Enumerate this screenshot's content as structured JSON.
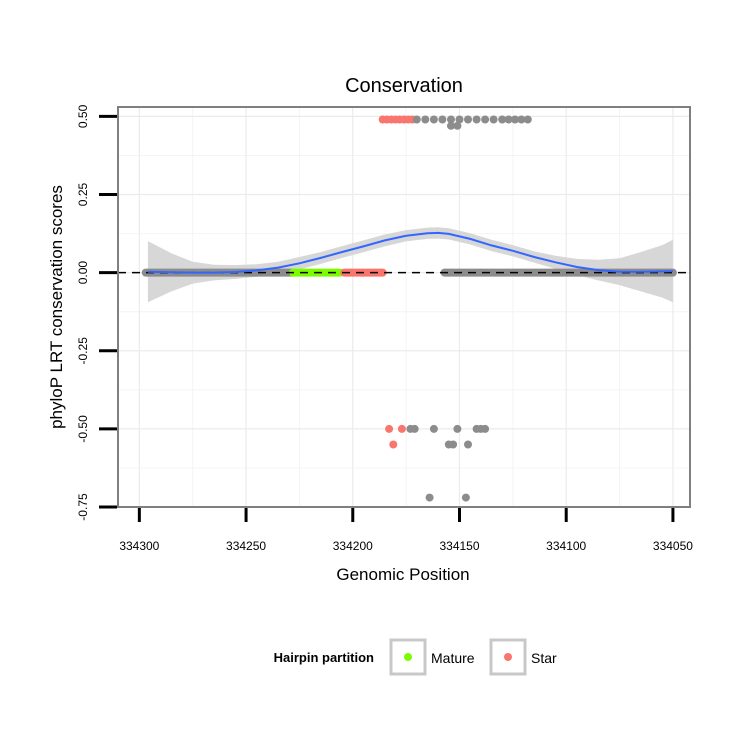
{
  "chart_data": {
    "type": "scatter",
    "title": "Conservation",
    "xlabel": "Genomic Position",
    "ylabel": "phyloP LRT conservation scores",
    "x_reversed": true,
    "xlim": [
      334310,
      334042
    ],
    "ylim": [
      -0.75,
      0.53
    ],
    "x_ticks": [
      334300,
      334250,
      334200,
      334150,
      334100,
      334050
    ],
    "y_ticks": [
      0.5,
      0.25,
      0.0,
      -0.25,
      -0.5,
      -0.75
    ],
    "y_tick_labels": [
      "0.50",
      "0.25",
      "0.00",
      "-0.25",
      "-0.50",
      "-0.75"
    ],
    "x_tick_labels": [
      "334300",
      "334250",
      "334200",
      "334150",
      "334100",
      "334050"
    ],
    "hline_y": 0,
    "legend": {
      "title": "Hairpin partition",
      "entries": [
        {
          "label": "Mature",
          "color": "#7cfc00"
        },
        {
          "label": "Star",
          "color": "#f8766d"
        }
      ],
      "position": "bottom"
    },
    "colors": {
      "none": "#8c8c8c",
      "mature": "#7cfc00",
      "star": "#f8766d",
      "smooth_line": "#3366ff",
      "ribbon": "#d3d3d3",
      "grid": "#ebebeb"
    },
    "series": [
      {
        "name": "none-left",
        "group": "none",
        "line_segment": {
          "x_from": 334297,
          "x_to": 334228,
          "y": 0
        }
      },
      {
        "name": "Mature",
        "group": "mature",
        "line_segment": {
          "x_from": 334228,
          "x_to": 334206,
          "y": 0
        }
      },
      {
        "name": "Star",
        "group": "star",
        "line_segment": {
          "x_from": 334204,
          "x_to": 334186,
          "y": 0
        },
        "points": [
          {
            "x": 334186,
            "y": 0.49
          },
          {
            "x": 334184,
            "y": 0.49
          },
          {
            "x": 334182,
            "y": 0.49
          },
          {
            "x": 334180,
            "y": 0.49
          },
          {
            "x": 334178,
            "y": 0.49
          },
          {
            "x": 334176,
            "y": 0.49
          },
          {
            "x": 334174,
            "y": 0.49
          },
          {
            "x": 334172,
            "y": 0.49
          },
          {
            "x": 334183,
            "y": -0.5
          },
          {
            "x": 334177,
            "y": -0.5
          },
          {
            "x": 334181,
            "y": -0.55
          }
        ]
      },
      {
        "name": "none-right",
        "group": "none",
        "line_segment": {
          "x_from": 334157,
          "x_to": 334050,
          "y": 0
        }
      },
      {
        "name": "none-points",
        "group": "none",
        "points": [
          {
            "x": 334170,
            "y": 0.49
          },
          {
            "x": 334166,
            "y": 0.49
          },
          {
            "x": 334162,
            "y": 0.49
          },
          {
            "x": 334158,
            "y": 0.49
          },
          {
            "x": 334154,
            "y": 0.49
          },
          {
            "x": 334150,
            "y": 0.49
          },
          {
            "x": 334146,
            "y": 0.49
          },
          {
            "x": 334142,
            "y": 0.49
          },
          {
            "x": 334138,
            "y": 0.49
          },
          {
            "x": 334134,
            "y": 0.49
          },
          {
            "x": 334130,
            "y": 0.49
          },
          {
            "x": 334127,
            "y": 0.49
          },
          {
            "x": 334124,
            "y": 0.49
          },
          {
            "x": 334121,
            "y": 0.49
          },
          {
            "x": 334118,
            "y": 0.49
          },
          {
            "x": 334154,
            "y": 0.47
          },
          {
            "x": 334151,
            "y": 0.47
          },
          {
            "x": 334173,
            "y": -0.5
          },
          {
            "x": 334171,
            "y": -0.5
          },
          {
            "x": 334162,
            "y": -0.5
          },
          {
            "x": 334151,
            "y": -0.5
          },
          {
            "x": 334142,
            "y": -0.5
          },
          {
            "x": 334140,
            "y": -0.5
          },
          {
            "x": 334138,
            "y": -0.5
          },
          {
            "x": 334155,
            "y": -0.55
          },
          {
            "x": 334153,
            "y": -0.55
          },
          {
            "x": 334146,
            "y": -0.55
          },
          {
            "x": 334164,
            "y": -0.72
          },
          {
            "x": 334147,
            "y": -0.72
          }
        ]
      }
    ],
    "smooth_curve": {
      "x": [
        334296,
        334285,
        334275,
        334265,
        334255,
        334245,
        334235,
        334225,
        334215,
        334205,
        334195,
        334185,
        334175,
        334165,
        334160,
        334155,
        334145,
        334135,
        334125,
        334115,
        334105,
        334095,
        334085,
        334075,
        334065,
        334055,
        334050
      ],
      "y": [
        0.003,
        0.001,
        0.0,
        0.0,
        0.002,
        0.007,
        0.016,
        0.03,
        0.047,
        0.066,
        0.084,
        0.103,
        0.118,
        0.126,
        0.127,
        0.124,
        0.108,
        0.087,
        0.07,
        0.05,
        0.033,
        0.018,
        0.008,
        0.003,
        0.003,
        0.004,
        0.005
      ],
      "lower": [
        -0.095,
        -0.06,
        -0.035,
        -0.025,
        -0.02,
        -0.013,
        -0.003,
        0.01,
        0.028,
        0.047,
        0.065,
        0.084,
        0.1,
        0.108,
        0.109,
        0.106,
        0.09,
        0.069,
        0.052,
        0.032,
        0.012,
        -0.008,
        -0.025,
        -0.04,
        -0.06,
        -0.08,
        -0.095
      ],
      "upper": [
        0.101,
        0.062,
        0.035,
        0.025,
        0.024,
        0.027,
        0.035,
        0.05,
        0.066,
        0.085,
        0.103,
        0.122,
        0.136,
        0.144,
        0.145,
        0.142,
        0.126,
        0.105,
        0.088,
        0.068,
        0.054,
        0.044,
        0.041,
        0.046,
        0.066,
        0.088,
        0.105
      ]
    }
  }
}
